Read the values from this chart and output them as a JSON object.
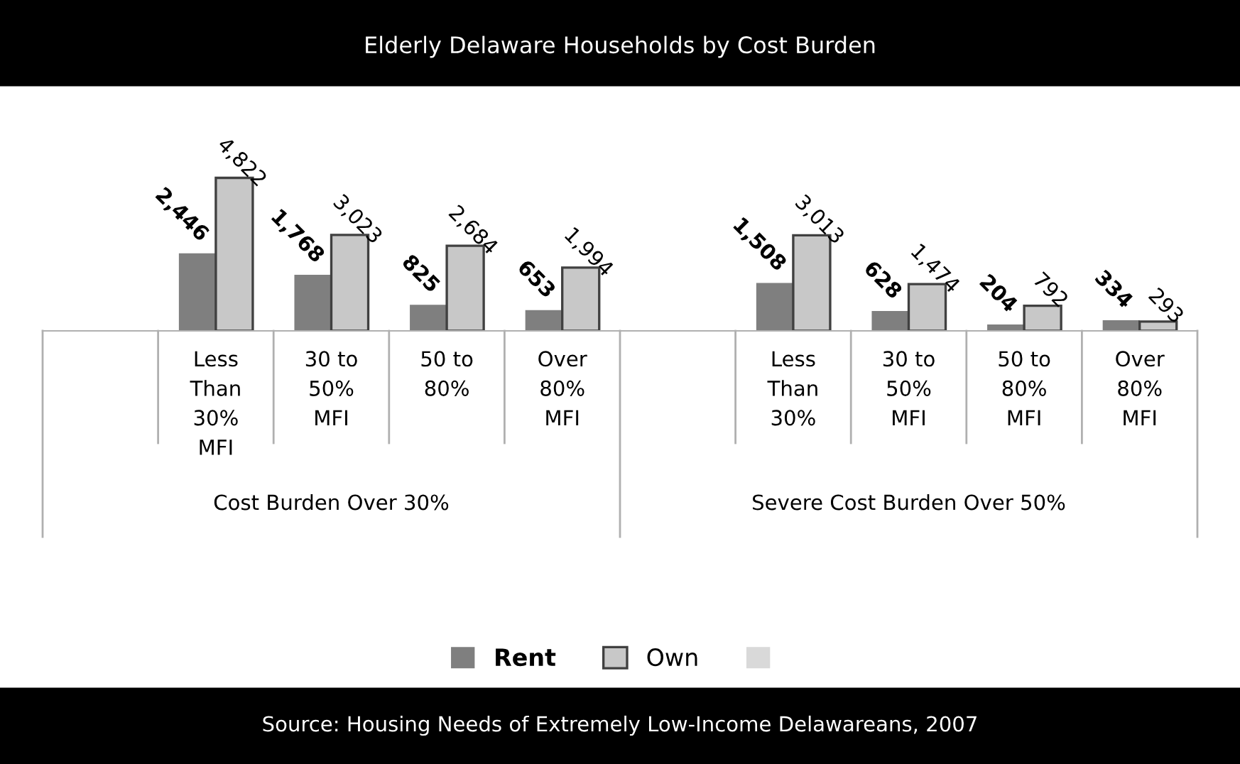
{
  "chart_data": {
    "type": "bar",
    "title": "Elderly Delaware Households by Cost Burden",
    "categories": [
      null,
      "Less\nThan\n30%\nMFI",
      "30 to\n50%\nMFI",
      "50 to\n80%",
      "Over\n80%\nMFI",
      null,
      "Less\nThan\n30%",
      "30 to\n50%\nMFI",
      "50 to\n80%\nMFI",
      "Over\n80%\nMFI"
    ],
    "series": [
      {
        "name": "Rent",
        "color": "#7f7f7f",
        "values": [
          null,
          2446,
          1768,
          825,
          653,
          null,
          1508,
          628,
          204,
          334
        ],
        "value_labels": [
          null,
          "2,446",
          "1,768",
          "825",
          "653",
          null,
          "1,508",
          "628",
          "204",
          "334"
        ]
      },
      {
        "name": "Own",
        "color": "#c8c8c8",
        "values": [
          null,
          4822,
          3023,
          2684,
          1994,
          null,
          3013,
          1474,
          792,
          293
        ],
        "value_labels": [
          null,
          "4,822",
          "3,023",
          "2,684",
          "1,994",
          null,
          "3,013",
          "1,474",
          "792",
          "293"
        ]
      },
      {
        "color": "#d9d9d9",
        "values": [
          null,
          null,
          null,
          null,
          null,
          null,
          null,
          null,
          null,
          null
        ]
      }
    ],
    "legend": "bottom",
    "grid": false,
    "annotations": [
      "Cost Burden Over 30%",
      "Severe Cost Burden Over 50%",
      "Source: Housing Needs of Extremely Low-Income Delawareans, 2007"
    ]
  }
}
